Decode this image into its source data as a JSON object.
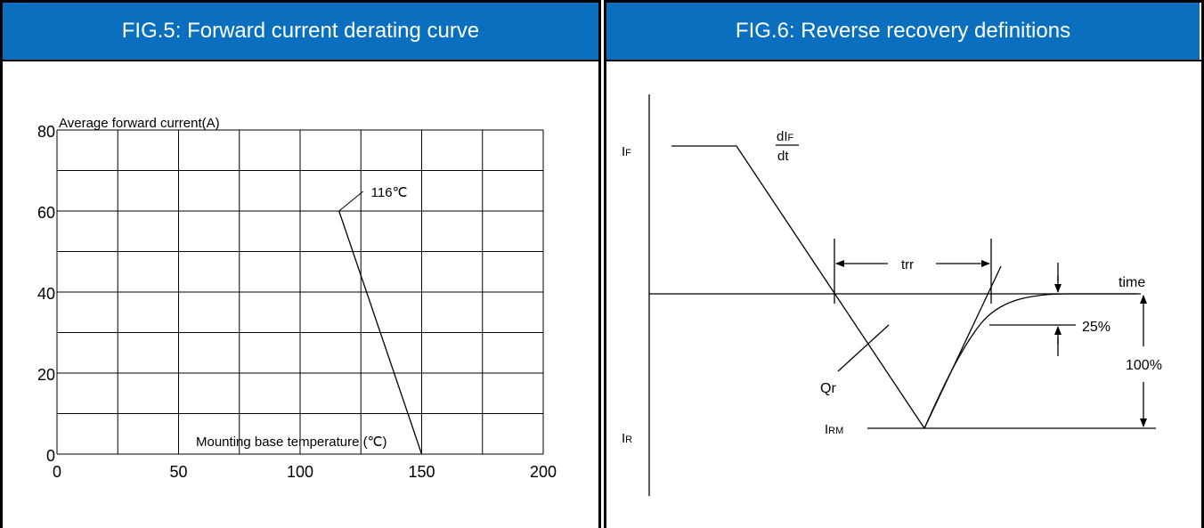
{
  "panels": [
    {
      "title": "FIG.5: Forward current derating curve"
    },
    {
      "title": "FIG.6: Reverse recovery definitions"
    }
  ],
  "chart_data": [
    {
      "type": "line",
      "title": "FIG.5: Forward current derating curve",
      "ylabel": "Average forward current(A)",
      "xlabel": "Mounting base temperature (℃)",
      "xlim": [
        0,
        200
      ],
      "ylim": [
        0,
        80
      ],
      "x_ticks": [
        "0",
        "50",
        "100",
        "150",
        "200"
      ],
      "y_ticks": [
        "0",
        "20",
        "40",
        "60",
        "80"
      ],
      "grid": true,
      "series": [
        {
          "x": [
            116,
            150
          ],
          "y": [
            60,
            0
          ]
        }
      ],
      "annotations": [
        {
          "text": "116℃",
          "x": 116,
          "y": 60
        }
      ]
    },
    {
      "type": "diagram",
      "title": "FIG.6: Reverse recovery definitions",
      "labels": {
        "if_main": "I",
        "if_sub": "F",
        "ir_main": "I",
        "ir_sub": "R",
        "irm_main": "I",
        "irm_sub": "RM",
        "didt_num_main": "dI",
        "didt_num_sub": "F",
        "didt_den": "dt",
        "trr": "trr",
        "time": "time",
        "pct25": "25%",
        "pct100": "100%",
        "qr": "Qr"
      }
    }
  ]
}
